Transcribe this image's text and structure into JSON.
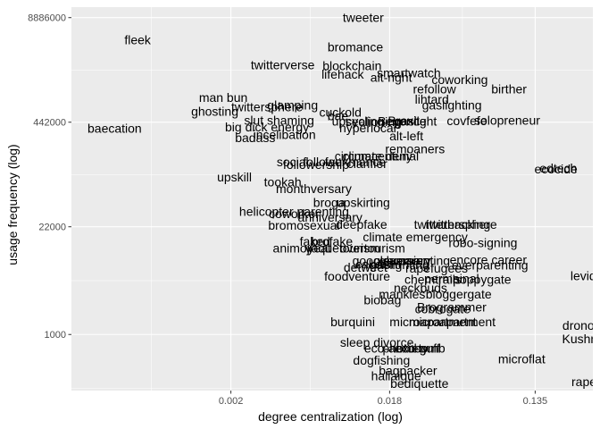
{
  "chart_data": {
    "type": "scatter",
    "style": "text-labels",
    "xlabel": "degree centralization (log)",
    "ylabel": "usage frequency (log)",
    "x_scale": "log",
    "y_scale": "log",
    "xlim": [
      0.00022,
      0.3
    ],
    "ylim": [
      200,
      12000000
    ],
    "x_ticks": [
      {
        "value": 0.002,
        "label": "0.002"
      },
      {
        "value": 0.018,
        "label": "0.018"
      },
      {
        "value": 0.135,
        "label": "0.135"
      }
    ],
    "y_ticks": [
      {
        "value": 1000,
        "label": "1000"
      },
      {
        "value": 22000,
        "label": "22000"
      },
      {
        "value": 442000,
        "label": "442000"
      },
      {
        "value": 8886000,
        "label": "8886000"
      }
    ],
    "grid": true,
    "background": "#ebebeb",
    "grid_color": "#ffffff",
    "points": [
      {
        "label": "tweeter",
        "x": 0.0125,
        "y": 8900000
      },
      {
        "label": "fleek",
        "x": 0.00055,
        "y": 4700000
      },
      {
        "label": "bromance",
        "x": 0.0112,
        "y": 3850000
      },
      {
        "label": "twitterverse",
        "x": 0.0041,
        "y": 2300000
      },
      {
        "label": "blockchain",
        "x": 0.0107,
        "y": 2250000
      },
      {
        "label": "lifehack",
        "x": 0.0094,
        "y": 1750000
      },
      {
        "label": "smartwatch",
        "x": 0.0235,
        "y": 1820000
      },
      {
        "label": "alt-right",
        "x": 0.0184,
        "y": 1600000
      },
      {
        "label": "coworking",
        "x": 0.0475,
        "y": 1500000
      },
      {
        "label": "refollow",
        "x": 0.0335,
        "y": 1150000
      },
      {
        "label": "birther",
        "x": 0.094,
        "y": 1150000
      },
      {
        "label": "man bun",
        "x": 0.0018,
        "y": 900000
      },
      {
        "label": "lihtard",
        "x": 0.0323,
        "y": 860000
      },
      {
        "label": "gaslighting",
        "x": 0.0426,
        "y": 720000
      },
      {
        "label": "twittersphere",
        "x": 0.0033,
        "y": 690000
      },
      {
        "label": "glamping",
        "x": 0.0047,
        "y": 720000
      },
      {
        "label": "ghosting",
        "x": 0.0016,
        "y": 605000
      },
      {
        "label": "cuckold",
        "x": 0.0091,
        "y": 590000
      },
      {
        "label": "bae",
        "x": 0.0088,
        "y": 530000
      },
      {
        "label": "slut shaming",
        "x": 0.0039,
        "y": 470000
      },
      {
        "label": "upcycling",
        "x": 0.0116,
        "y": 455000
      },
      {
        "label": "sealioning",
        "x": 0.0144,
        "y": 450000
      },
      {
        "label": "Beyonce",
        "x": 0.0214,
        "y": 455000
      },
      {
        "label": "Brexit",
        "x": 0.0219,
        "y": 460000
      },
      {
        "label": "gaslight",
        "x": 0.0257,
        "y": 455000
      },
      {
        "label": "covfefe",
        "x": 0.0525,
        "y": 460000
      },
      {
        "label": "solopreneur",
        "x": 0.0915,
        "y": 470000
      },
      {
        "label": "big dick energy",
        "x": 0.0033,
        "y": 385000
      },
      {
        "label": "hyperlocal",
        "x": 0.0133,
        "y": 375000
      },
      {
        "label": "baecation",
        "x": 0.0004,
        "y": 370000
      },
      {
        "label": "incelibation",
        "x": 0.0042,
        "y": 310000
      },
      {
        "label": "alt-left",
        "x": 0.0227,
        "y": 298000
      },
      {
        "label": "badass",
        "x": 0.0028,
        "y": 285000
      },
      {
        "label": "remoaners",
        "x": 0.0256,
        "y": 206000
      },
      {
        "label": "circumcentury",
        "x": 0.0144,
        "y": 168000
      },
      {
        "label": "climate denial",
        "x": 0.0159,
        "y": 168000
      },
      {
        "label": "social",
        "x": 0.0047,
        "y": 142000
      },
      {
        "label": "follower",
        "x": 0.0073,
        "y": 142000
      },
      {
        "label": "followership",
        "x": 0.0065,
        "y": 131000
      },
      {
        "label": "fauxmance",
        "x": 0.0112,
        "y": 142000
      },
      {
        "label": "clarifier",
        "x": 0.0132,
        "y": 135000
      },
      {
        "label": "ecocide",
        "x": 0.18,
        "y": 115000
      },
      {
        "label": "edtech",
        "x": 0.186,
        "y": 118000
      },
      {
        "label": "upskill",
        "x": 0.0021,
        "y": 92000
      },
      {
        "label": "tookah",
        "x": 0.0041,
        "y": 80000
      },
      {
        "label": "monthversary",
        "x": 0.0063,
        "y": 66000
      },
      {
        "label": "broga",
        "x": 0.0078,
        "y": 44000
      },
      {
        "label": "upskirting",
        "x": 0.0125,
        "y": 44000
      },
      {
        "label": "helicopter parenting",
        "x": 0.0048,
        "y": 34000
      },
      {
        "label": "coworker",
        "x": 0.0048,
        "y": 32000
      },
      {
        "label": "anniversary",
        "x": 0.0079,
        "y": 29000
      },
      {
        "label": "bromosexual",
        "x": 0.0055,
        "y": 23000
      },
      {
        "label": "deepfake",
        "x": 0.0122,
        "y": 23500
      },
      {
        "label": "twitterhacking",
        "x": 0.0428,
        "y": 23500
      },
      {
        "label": "twittersphere",
        "x": 0.0485,
        "y": 23500
      },
      {
        "label": "climate emergency",
        "x": 0.0257,
        "y": 16500
      },
      {
        "label": "faked",
        "x": 0.0064,
        "y": 14500
      },
      {
        "label": "brofake",
        "x": 0.0081,
        "y": 14500
      },
      {
        "label": "robo-signing",
        "x": 0.0655,
        "y": 14000
      },
      {
        "label": "animoji",
        "x": 0.0047,
        "y": 12000
      },
      {
        "label": "yeat",
        "x": 0.0068,
        "y": 12000
      },
      {
        "label": "vaquetourism",
        "x": 0.0094,
        "y": 12000
      },
      {
        "label": "overtourism",
        "x": 0.0142,
        "y": 12000
      },
      {
        "label": "encore career",
        "x": 0.0705,
        "y": 8600
      },
      {
        "label": "googleversary",
        "x": 0.0185,
        "y": 8400
      },
      {
        "label": "glamping",
        "x": 0.0222,
        "y": 8400
      },
      {
        "label": "overparenting",
        "x": 0.0245,
        "y": 8300
      },
      {
        "label": "cakeism",
        "x": 0.0154,
        "y": 7500
      },
      {
        "label": "gaslighting",
        "x": 0.0206,
        "y": 7400
      },
      {
        "label": "everparenting",
        "x": 0.0722,
        "y": 7300
      },
      {
        "label": "detweet",
        "x": 0.0129,
        "y": 6900
      },
      {
        "label": "rapefugees",
        "x": 0.0345,
        "y": 6700
      },
      {
        "label": "foodventure",
        "x": 0.0115,
        "y": 5300
      },
      {
        "label": "chemtrails",
        "x": 0.0328,
        "y": 4900
      },
      {
        "label": "permainal",
        "x": 0.0425,
        "y": 5000
      },
      {
        "label": "poppygate",
        "x": 0.0647,
        "y": 4900
      },
      {
        "label": "levidrome",
        "x": 0.32,
        "y": 5400
      },
      {
        "label": "neckbuds",
        "x": 0.0276,
        "y": 3800
      },
      {
        "label": "mankles",
        "x": 0.0214,
        "y": 3200
      },
      {
        "label": "bloggergate",
        "x": 0.0468,
        "y": 3200
      },
      {
        "label": "biobag",
        "x": 0.0163,
        "y": 2700
      },
      {
        "label": "Brogrammer",
        "x": 0.0425,
        "y": 2200
      },
      {
        "label": "cobrogate",
        "x": 0.0375,
        "y": 2100
      },
      {
        "label": "microapartment",
        "x": 0.0428,
        "y": 1450
      },
      {
        "label": "microapartment",
        "x": 0.0328,
        "y": 1450
      },
      {
        "label": "burquini",
        "x": 0.0108,
        "y": 1450
      },
      {
        "label": "dronography",
        "x": 0.32,
        "y": 1300
      },
      {
        "label": "Kushnergate",
        "x": 0.32,
        "y": 880
      },
      {
        "label": "sleep divorce",
        "x": 0.0151,
        "y": 800
      },
      {
        "label": "eco-anxiety",
        "x": 0.0197,
        "y": 680
      },
      {
        "label": "photobomb",
        "x": 0.0252,
        "y": 680
      },
      {
        "label": "eco-guff",
        "x": 0.0265,
        "y": 680
      },
      {
        "label": "microflat",
        "x": 0.112,
        "y": 500
      },
      {
        "label": "dogfishing",
        "x": 0.0161,
        "y": 480
      },
      {
        "label": "bagpacker",
        "x": 0.0232,
        "y": 355
      },
      {
        "label": "hallaigue",
        "x": 0.0197,
        "y": 305
      },
      {
        "label": "rapeseed",
        "x": 0.32,
        "y": 260
      },
      {
        "label": "bediquette",
        "x": 0.0272,
        "y": 245
      }
    ]
  }
}
